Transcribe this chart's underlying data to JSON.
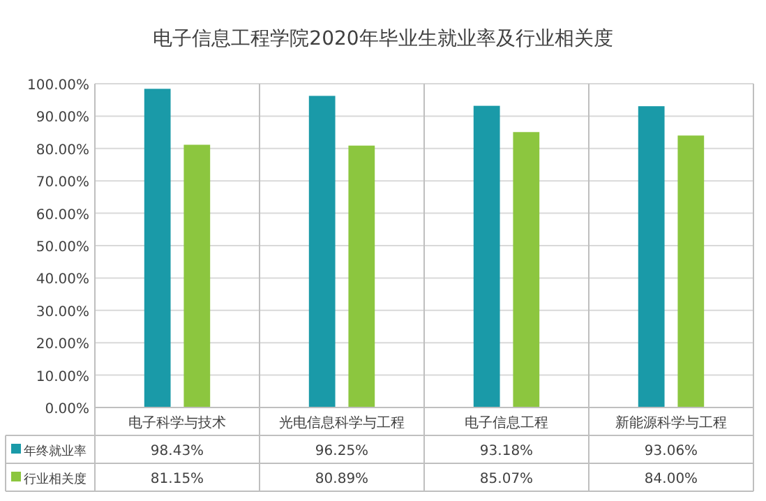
{
  "chart_data": {
    "type": "bar",
    "title": "电子信息工程学院2020年毕业生就业率及行业相关度",
    "categories": [
      "电子科学与技术",
      "光电信息科学与工程",
      "电子信息工程",
      "新能源科学与工程"
    ],
    "series": [
      {
        "name": "年终就业率",
        "color": "#1a9aa8",
        "values": [
          98.43,
          96.25,
          93.18,
          93.06
        ],
        "value_labels": [
          "98.43%",
          "96.25%",
          "93.18%",
          "93.06%"
        ]
      },
      {
        "name": "行业相关度",
        "color": "#8cc63f",
        "values": [
          81.15,
          80.89,
          85.07,
          84.0
        ],
        "value_labels": [
          "81.15%",
          "80.89%",
          "85.07%",
          "84.00%"
        ]
      }
    ],
    "ylim": [
      0,
      100
    ],
    "yticks": [
      {
        "value": 0,
        "label": "0.00%"
      },
      {
        "value": 10,
        "label": "10.00%"
      },
      {
        "value": 20,
        "label": "20.00%"
      },
      {
        "value": 30,
        "label": "30.00%"
      },
      {
        "value": 40,
        "label": "40.00%"
      },
      {
        "value": 50,
        "label": "50.00%"
      },
      {
        "value": 60,
        "label": "60.00%"
      },
      {
        "value": 70,
        "label": "70.00%"
      },
      {
        "value": 80,
        "label": "80.00%"
      },
      {
        "value": 90,
        "label": "90.00%"
      },
      {
        "value": 100,
        "label": "100.00%"
      }
    ],
    "grid": "y",
    "legend": "bottom"
  }
}
